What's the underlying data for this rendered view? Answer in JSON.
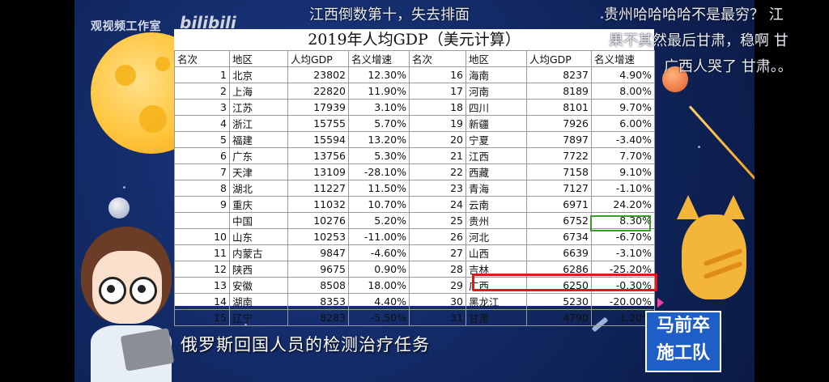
{
  "watermark": {
    "studio": "观视频工作室",
    "bili": "bilibili"
  },
  "danmaku": [
    "江西倒数第十，失去排面",
    "贵州哈哈哈哈不是最穷？ 江",
    "果不其然最后甘肃，稳啊 甘",
    "广西人哭了  甘肃。。"
  ],
  "subtitle": "俄罗斯回国人员的检测治疗任务",
  "logo": {
    "line1": "马前卒",
    "line2": "施工队"
  },
  "table": {
    "title": "2019年人均GDP（美元计算）",
    "headers": [
      "名次",
      "地区",
      "人均GDP",
      "名义增速",
      "名次",
      "地区",
      "人均GDP",
      "名义增速"
    ],
    "rows": [
      [
        "1",
        "北京",
        "23802",
        "12.30%",
        "16",
        "海南",
        "8237",
        "4.90%"
      ],
      [
        "2",
        "上海",
        "22820",
        "11.90%",
        "17",
        "河南",
        "8189",
        "8.00%"
      ],
      [
        "3",
        "江苏",
        "17939",
        "3.10%",
        "18",
        "四川",
        "8101",
        "9.70%"
      ],
      [
        "4",
        "浙江",
        "15755",
        "5.70%",
        "19",
        "新疆",
        "7926",
        "6.00%"
      ],
      [
        "5",
        "福建",
        "15594",
        "13.20%",
        "20",
        "宁夏",
        "7897",
        "-3.40%"
      ],
      [
        "6",
        "广东",
        "13756",
        "5.30%",
        "21",
        "江西",
        "7722",
        "7.70%"
      ],
      [
        "7",
        "天津",
        "13109",
        "-28.10%",
        "22",
        "西藏",
        "7158",
        "9.10%"
      ],
      [
        "8",
        "湖北",
        "11227",
        "11.50%",
        "23",
        "青海",
        "7127",
        "-1.10%"
      ],
      [
        "9",
        "重庆",
        "11032",
        "10.70%",
        "24",
        "云南",
        "6971",
        "24.20%"
      ],
      [
        "",
        "中国",
        "10276",
        "5.20%",
        "25",
        "贵州",
        "6752",
        "8.30%"
      ],
      [
        "10",
        "山东",
        "10253",
        "-11.00%",
        "26",
        "河北",
        "6734",
        "-6.70%"
      ],
      [
        "11",
        "内蒙古",
        "9847",
        "-4.60%",
        "27",
        "山西",
        "6639",
        "-3.10%"
      ],
      [
        "12",
        "陕西",
        "9675",
        "0.90%",
        "28",
        "吉林",
        "6286",
        "-25.20%"
      ],
      [
        "13",
        "安徽",
        "8508",
        "18.00%",
        "29",
        "广西",
        "6250",
        "-0.30%"
      ],
      [
        "14",
        "湖南",
        "8353",
        "4.40%",
        "30",
        "黑龙江",
        "5230",
        "-20.00%"
      ],
      [
        "15",
        "辽宁",
        "8283",
        "-5.50%",
        "31",
        "甘肃",
        "4790",
        "1.20%"
      ]
    ]
  },
  "colors": {
    "highlight_red": "#e01818",
    "highlight_green": "#3b9b2c",
    "logo_blue": "#1e5ec7"
  }
}
